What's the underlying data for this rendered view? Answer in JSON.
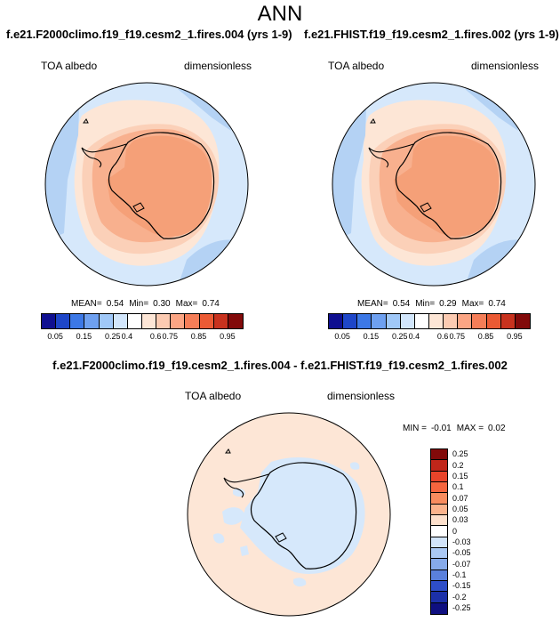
{
  "header": {
    "title": "ANN"
  },
  "palettes": {
    "abs": [
      "#0f0f90",
      "#1e46c8",
      "#3c78e6",
      "#6ea0f0",
      "#a0c8f8",
      "#d2e6fc",
      "#ffffff",
      "#fde6d6",
      "#fccbb2",
      "#fba584",
      "#f57e58",
      "#eb5a34",
      "#c8321e",
      "#820a0a"
    ],
    "diff": [
      "#820a0a",
      "#c0261a",
      "#e8442a",
      "#f5653e",
      "#f88c5e",
      "#fbb38c",
      "#fde0cc",
      "#ffffff",
      "#d2e4fa",
      "#aac8f4",
      "#86aaea",
      "#5a80dc",
      "#2e4ec8",
      "#1c30a8",
      "#0f0f80"
    ]
  },
  "map_colors": {
    "ocean_low": "#d6e8fb",
    "ocean_mid": "#fde6d6",
    "coast_ring": "#fbd0b8",
    "ice": "#f5a078",
    "ice_edge": "#f8b08e",
    "clear_sky": "#b4d2f4",
    "diff_pos": "#fde6d6",
    "diff_neg": "#d6e8fb",
    "coastline": "#000000"
  },
  "panels": [
    {
      "title": "f.e21.F2000climo.f19_f19.cesm2_1.fires.004 (yrs 1-9)",
      "variable": "TOA albedo",
      "units": "dimensionless",
      "stats": {
        "mean_label": "MEAN=",
        "mean": "0.54",
        "min_label": "Min=",
        "min": "0.30",
        "max_label": "Max=",
        "max": "0.74"
      },
      "colorbar_ticks": [
        "0.05",
        "0.15",
        "0.25",
        "0.4",
        "0.6",
        "0.75",
        "0.85",
        "0.95"
      ]
    },
    {
      "title": "f.e21.FHIST.f19_f19.cesm2_1.fires.002 (yrs 1-9)",
      "variable": "TOA albedo",
      "units": "dimensionless",
      "stats": {
        "mean_label": "MEAN=",
        "mean": "0.54",
        "min_label": "Min=",
        "min": "0.29",
        "max_label": "Max=",
        "max": "0.74"
      },
      "colorbar_ticks": [
        "0.05",
        "0.15",
        "0.25",
        "0.4",
        "0.6",
        "0.75",
        "0.85",
        "0.95"
      ]
    }
  ],
  "difference": {
    "title": "f.e21.F2000climo.f19_f19.cesm2_1.fires.004 - f.e21.FHIST.f19_f19.cesm2_1.fires.002",
    "variable": "TOA albedo",
    "units": "dimensionless",
    "stats": {
      "min_label": "MIN =",
      "min": "-0.01",
      "max_label": "MAX =",
      "max": "0.02"
    },
    "colorbar_labels": [
      "0.25",
      "0.2",
      "0.15",
      "0.1",
      "0.07",
      "0.05",
      "0.03",
      "0",
      "-0.03",
      "-0.05",
      "-0.07",
      "-0.1",
      "-0.15",
      "-0.2",
      "-0.25"
    ]
  }
}
